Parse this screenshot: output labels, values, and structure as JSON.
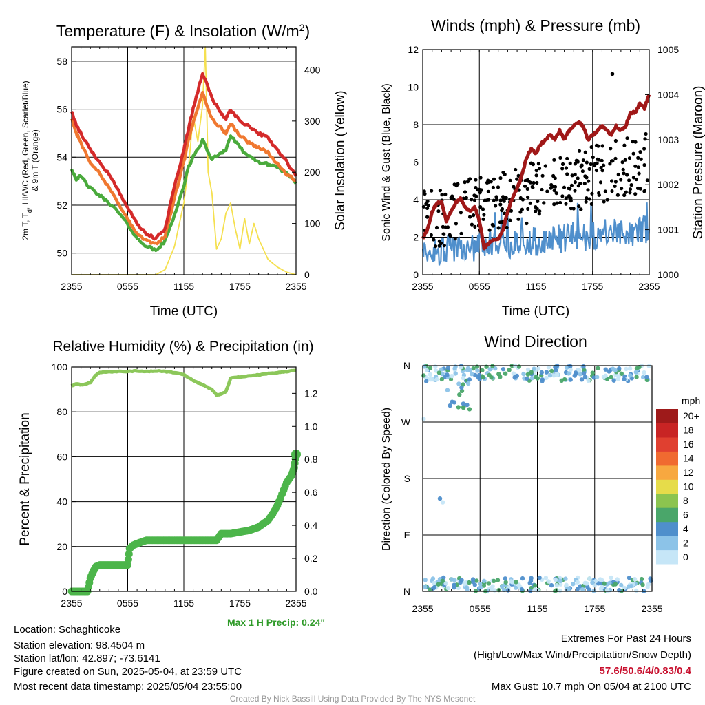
{
  "panels": {
    "temperature": {
      "title": "Temperature (F) & Insolation (W/m",
      "title_sup": "2",
      "title_close": ")",
      "ylabel_left_line1": "2m T, T",
      "ylabel_left_sub": "d",
      "ylabel_left_line1_rest": ", HI/WC (Red, Green, Scarlet/Blue)",
      "ylabel_left_line2": "& 9m T (Orange)",
      "ylabel_right": "Solar Insolation (Yellow)",
      "xlabel": "Time (UTC)"
    },
    "winds": {
      "title": "Winds (mph) & Pressure (mb)",
      "ylabel_left": "Sonic Wind & Gust (Blue, Black)",
      "ylabel_right": "Station Pressure (Maroon)",
      "xlabel": "Time (UTC)"
    },
    "humidity": {
      "title": "Relative Humidity (%) & Precipitation (in)",
      "ylabel_left": "Percent & Precipitation",
      "max_precip_note": "Max 1 H Precip: 0.24\""
    },
    "direction": {
      "title": "Wind Direction",
      "ylabel_left": "Direction (Colored By Speed)",
      "colorbar_title": "mph"
    }
  },
  "info": {
    "location": "Location: Schaghticoke",
    "elevation": "Station elevation: 98.4504 m",
    "latlon": "Station lat/lon: 42.897; -73.6141",
    "created": "Figure created on Sun, 2025-05-04, at 23:59 UTC",
    "recent": "Most recent data timestamp: 2025/05/04 23:55:00"
  },
  "extremes": {
    "heading": "Extremes For Past 24 Hours",
    "subheading": "(High/Low/Max Wind/Precipitation/Snow Depth)",
    "values": "57.6/50.6/4/0.83/0.4",
    "max_gust": "Max Gust: 10.7 mph On 05/04 at 2100 UTC"
  },
  "credit": "Created By Nick Bassill Using Data Provided By The NYS Mesonet",
  "colors": {
    "temp_red": "#d42a2a",
    "temp_orange": "#f07830",
    "temp_green": "#4aaa3c",
    "insolation": "#f5e050",
    "wind_blue": "#4f8fcc",
    "gust_black": "#000000",
    "pressure_maroon": "#a01818",
    "rh_green": "#8cc75a",
    "precip_green": "#4cb54a",
    "max_precip_text": "#2e9a28",
    "extremes_red": "#c8102e",
    "credit_gray": "#999999"
  },
  "chart_data": [
    {
      "id": "temperature",
      "type": "line",
      "x_ticks": [
        "2355",
        "0555",
        "1155",
        "1755",
        "2355"
      ],
      "ylim": [
        49.1,
        58.6
      ],
      "y_ticks": [
        50,
        52,
        54,
        56,
        58
      ],
      "y2lim": [
        0,
        445
      ],
      "y2_ticks": [
        0,
        100,
        200,
        300,
        400
      ],
      "series": [
        {
          "key": "t2m",
          "axis": "left",
          "color": "#d42a2a",
          "x": [
            0,
            0.5,
            1,
            2,
            3,
            4,
            5,
            6,
            7,
            8,
            9,
            10,
            11,
            12,
            12.5,
            13,
            14,
            15,
            16,
            16.5,
            17,
            18,
            19,
            20,
            21,
            22,
            23,
            24
          ],
          "y": [
            55.9,
            55.3,
            55.0,
            54.3,
            53.8,
            53.3,
            52.6,
            51.9,
            51.2,
            50.8,
            50.6,
            51.0,
            52.8,
            54.3,
            55.2,
            56.0,
            57.5,
            56.5,
            55.8,
            55.6,
            56.0,
            55.5,
            55.3,
            55.0,
            54.8,
            54.3,
            53.8,
            53.2
          ]
        },
        {
          "key": "t9m",
          "axis": "left",
          "color": "#f07830",
          "x": [
            0,
            0.5,
            1,
            2,
            3,
            4,
            5,
            6,
            7,
            8,
            9,
            10,
            11,
            12,
            12.5,
            13,
            14,
            15,
            16,
            16.5,
            17,
            18,
            19,
            20,
            21,
            22,
            23,
            24
          ],
          "y": [
            55.6,
            55.0,
            54.6,
            53.8,
            53.3,
            52.7,
            52.1,
            51.4,
            50.8,
            50.5,
            50.4,
            50.7,
            52.3,
            53.8,
            54.7,
            55.4,
            56.7,
            55.6,
            55.2,
            55.0,
            55.4,
            54.9,
            54.6,
            54.4,
            54.2,
            53.7,
            53.3,
            53.0
          ]
        },
        {
          "key": "td",
          "axis": "left",
          "color": "#4aaa3c",
          "x": [
            0,
            0.5,
            1,
            2,
            3,
            4,
            5,
            6,
            7,
            8,
            9,
            10,
            11,
            12,
            12.5,
            13,
            14,
            15,
            16,
            16.5,
            17,
            18,
            19,
            20,
            21,
            22,
            23,
            24
          ],
          "y": [
            53.5,
            53.1,
            53.2,
            52.7,
            52.4,
            52.1,
            51.7,
            51.2,
            50.6,
            50.3,
            50.1,
            50.5,
            51.6,
            52.8,
            53.6,
            54.0,
            54.7,
            53.9,
            54.2,
            54.3,
            54.9,
            54.4,
            54.0,
            53.8,
            53.7,
            53.6,
            53.3,
            52.9
          ]
        },
        {
          "key": "insolation",
          "axis": "right",
          "color": "#f5e050",
          "x": [
            0,
            9,
            10,
            11,
            12,
            12.5,
            13,
            13.5,
            14,
            14.3,
            14.6,
            15,
            15.5,
            16,
            16.5,
            17,
            17.5,
            18,
            18.5,
            19,
            19.5,
            20,
            21,
            22,
            23,
            24
          ],
          "y": [
            0,
            0,
            10,
            55,
            140,
            210,
            310,
            260,
            330,
            445,
            200,
            160,
            50,
            70,
            120,
            140,
            90,
            50,
            110,
            60,
            100,
            70,
            30,
            15,
            5,
            0
          ]
        }
      ]
    },
    {
      "id": "winds",
      "type": "line",
      "x_ticks": [
        "2355",
        "0555",
        "1155",
        "1755",
        "2355"
      ],
      "ylim": [
        0,
        12
      ],
      "y_ticks": [
        0,
        2,
        4,
        6,
        8,
        10,
        12
      ],
      "y2lim": [
        1000,
        1005
      ],
      "y2_ticks": [
        1000,
        1001,
        1002,
        1003,
        1004,
        1005
      ],
      "series": [
        {
          "key": "pressure",
          "axis": "right",
          "color": "#a01818",
          "x": [
            0,
            0.5,
            1,
            1.5,
            2,
            2.5,
            3,
            3.5,
            4,
            4.5,
            5,
            5.5,
            6,
            6.5,
            7,
            7.5,
            8,
            8.5,
            9,
            9.5,
            10,
            10.5,
            11,
            11.5,
            12,
            12.5,
            13,
            13.5,
            14,
            14.5,
            15,
            15.5,
            16,
            16.5,
            17,
            17.5,
            18,
            18.5,
            19,
            19.5,
            20,
            20.5,
            21,
            21.5,
            22,
            22.5,
            23,
            23.5,
            24
          ],
          "y": [
            1000.8,
            1001.0,
            1001.4,
            1001.6,
            1001.6,
            1001.2,
            1001.4,
            1001.6,
            1001.7,
            1001.5,
            1001.4,
            1001.5,
            1001.2,
            1000.6,
            1000.7,
            1000.8,
            1000.8,
            1001.0,
            1001.4,
            1001.7,
            1001.9,
            1002.2,
            1002.6,
            1002.8,
            1002.7,
            1002.9,
            1003.0,
            1003.1,
            1003.0,
            1003.2,
            1003.0,
            1003.2,
            1003.3,
            1003.4,
            1003.3,
            1003.0,
            1003.1,
            1003.2,
            1003.3,
            1003.2,
            1003.1,
            1003.3,
            1003.2,
            1003.3,
            1003.6,
            1003.6,
            1003.8,
            1003.7,
            1004.0
          ]
        }
      ],
      "wind": {
        "key": "sonic_wind",
        "color": "#4f8fcc",
        "x_range": [
          0,
          24
        ],
        "mean_start": 1.2,
        "mean_end": 2.4
      },
      "gust": {
        "key": "gust",
        "color": "#000000",
        "max": 10.7,
        "max_time": "2100 UTC"
      }
    },
    {
      "id": "humidity",
      "type": "line",
      "x_ticks": [
        "2355",
        "0555",
        "1155",
        "1755",
        "2355"
      ],
      "ylim": [
        0,
        100
      ],
      "y_ticks": [
        0,
        20,
        40,
        60,
        80,
        100
      ],
      "y2lim": [
        0,
        1.36
      ],
      "y2_ticks": [
        0.0,
        0.2,
        0.4,
        0.6,
        0.8,
        1.0,
        1.2
      ],
      "series": [
        {
          "key": "rh",
          "axis": "left",
          "color": "#8cc75a",
          "x": [
            0,
            0.5,
            1,
            2,
            2.5,
            3,
            4,
            5,
            6,
            7,
            8,
            9,
            10,
            11,
            12,
            13,
            14,
            15,
            15.5,
            16,
            16.5,
            17,
            18,
            19,
            20,
            21,
            22,
            23,
            24
          ],
          "y": [
            91.5,
            92.5,
            92.0,
            93.0,
            96.0,
            97.5,
            97.8,
            98.0,
            98.0,
            98.2,
            98.0,
            98.2,
            98.0,
            97.5,
            96.5,
            94.0,
            92.0,
            90.0,
            87.5,
            88.0,
            89.0,
            95.0,
            95.5,
            96.0,
            96.5,
            97.0,
            97.5,
            98.0,
            98.5
          ]
        },
        {
          "key": "precip",
          "axis": "right",
          "color": "#4cb54a",
          "x": [
            0,
            1,
            1.7,
            2.0,
            2.3,
            2.6,
            3,
            4,
            5,
            6,
            6.2,
            6.6,
            7,
            8,
            9,
            10,
            12,
            14,
            15.5,
            16,
            17,
            18,
            19,
            20,
            21,
            21.5,
            22,
            22.5,
            23,
            23.5,
            23.8,
            24
          ],
          "y": [
            0,
            0,
            0,
            0.08,
            0.12,
            0.15,
            0.16,
            0.16,
            0.16,
            0.16,
            0.26,
            0.28,
            0.29,
            0.31,
            0.31,
            0.31,
            0.31,
            0.31,
            0.31,
            0.35,
            0.35,
            0.36,
            0.37,
            0.39,
            0.43,
            0.47,
            0.52,
            0.59,
            0.66,
            0.7,
            0.75,
            0.83
          ]
        }
      ]
    },
    {
      "id": "direction",
      "type": "scatter",
      "x_ticks": [
        "2355",
        "0555",
        "1155",
        "1755",
        "2355"
      ],
      "y_ticks": [
        "N",
        "E",
        "S",
        "W",
        "N"
      ],
      "ylim": [
        0,
        360
      ],
      "colorbar": {
        "labels": [
          "0",
          "2",
          "4",
          "6",
          "8",
          "10",
          "12",
          "14",
          "16",
          "18",
          "20+"
        ],
        "colors": [
          "#c6e6f7",
          "#8cc3e8",
          "#4f8fcc",
          "#4aa66a",
          "#8cc44f",
          "#e6dc4a",
          "#f7a840",
          "#f06a30",
          "#e04030",
          "#c82424",
          "#9e1a1a"
        ]
      }
    }
  ]
}
